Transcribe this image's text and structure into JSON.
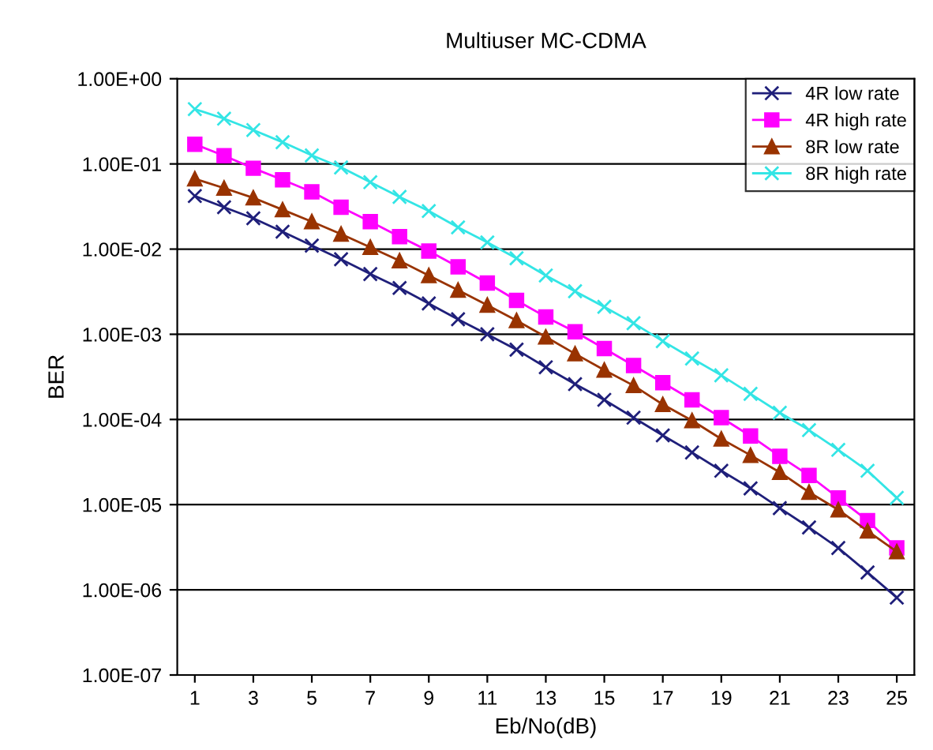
{
  "chart_data": {
    "type": "line",
    "title": "Multiuser MC-CDMA",
    "xlabel": "Eb/No(dB)",
    "ylabel": "BER",
    "log": "y",
    "x": [
      1,
      2,
      3,
      4,
      5,
      6,
      7,
      8,
      9,
      10,
      11,
      12,
      13,
      14,
      15,
      16,
      17,
      18,
      19,
      20,
      21,
      22,
      23,
      24,
      25
    ],
    "xlim": [
      0.4,
      25.6
    ],
    "xticks": [
      1,
      3,
      5,
      7,
      9,
      11,
      13,
      15,
      17,
      19,
      21,
      23,
      25
    ],
    "ylim": [
      1e-07,
      1
    ],
    "yticks": [
      {
        "value": 1,
        "label": "1.00E+00"
      },
      {
        "value": 0.1,
        "label": "1.00E-01"
      },
      {
        "value": 0.01,
        "label": "1.00E-02"
      },
      {
        "value": 0.001,
        "label": "1.00E-03"
      },
      {
        "value": 0.0001,
        "label": "1.00E-04"
      },
      {
        "value": 1e-05,
        "label": "1.00E-05"
      },
      {
        "value": 1e-06,
        "label": "1.00E-06"
      },
      {
        "value": 1e-07,
        "label": "1.00E-07"
      }
    ],
    "grid": "y",
    "legend": "top right",
    "line_style": "solid",
    "series": [
      {
        "name": "4R low rate",
        "color": "#1f1f7a",
        "marker": "cross",
        "values": [
          0.042,
          0.031,
          0.023,
          0.016,
          0.011,
          0.0076,
          0.0051,
          0.0035,
          0.0023,
          0.0015,
          0.001,
          0.00066,
          0.00041,
          0.00026,
          0.00017,
          0.000105,
          6.5e-05,
          4.1e-05,
          2.5e-05,
          1.55e-05,
          9.1e-06,
          5.4e-06,
          3.1e-06,
          1.6e-06,
          8.1e-07
        ]
      },
      {
        "name": "4R high rate",
        "color": "#ff00ff",
        "marker": "square",
        "values": [
          0.17,
          0.125,
          0.089,
          0.065,
          0.047,
          0.031,
          0.021,
          0.014,
          0.0095,
          0.0062,
          0.004,
          0.0025,
          0.0016,
          0.00107,
          0.00068,
          0.00043,
          0.00027,
          0.00017,
          0.000105,
          6.4e-05,
          3.7e-05,
          2.2e-05,
          1.2e-05,
          6.5e-06,
          3.1e-06
        ]
      },
      {
        "name": "8R low rate",
        "color": "#993300",
        "marker": "triangle",
        "values": [
          0.067,
          0.052,
          0.04,
          0.029,
          0.021,
          0.015,
          0.0105,
          0.0073,
          0.0049,
          0.0033,
          0.0022,
          0.00145,
          0.00093,
          0.00059,
          0.00038,
          0.00025,
          0.00015,
          9.7e-05,
          5.9e-05,
          3.8e-05,
          2.4e-05,
          1.4e-05,
          8.7e-06,
          4.9e-06,
          2.8e-06
        ]
      },
      {
        "name": "8R high rate",
        "color": "#33e5e5",
        "marker": "cross",
        "values": [
          0.44,
          0.34,
          0.25,
          0.18,
          0.126,
          0.091,
          0.061,
          0.041,
          0.028,
          0.018,
          0.012,
          0.0078,
          0.0049,
          0.0032,
          0.0021,
          0.00135,
          0.00083,
          0.00052,
          0.00033,
          0.0002,
          0.00012,
          7.5e-05,
          4.4e-05,
          2.5e-05,
          1.2e-05
        ]
      }
    ]
  }
}
